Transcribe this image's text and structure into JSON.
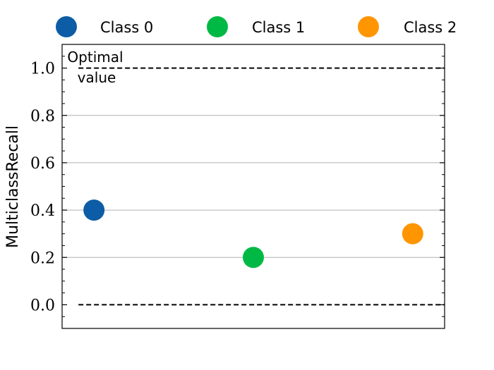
{
  "chart_data": {
    "type": "scatter",
    "title": "",
    "xlabel": "",
    "ylabel": "MulticlassRecall",
    "ylim": [
      -0.1,
      1.1
    ],
    "yticks": [
      0.0,
      0.2,
      0.4,
      0.6,
      0.8,
      1.0
    ],
    "ytick_labels": [
      "0.0",
      "0.2",
      "0.4",
      "0.6",
      "0.8",
      "1.0"
    ],
    "grid": "horizontal",
    "legend": {
      "placement": "top",
      "columns": 3
    },
    "series": [
      {
        "name": "Class 0",
        "x": 0,
        "y": 0.4,
        "color": "#0c5da5"
      },
      {
        "name": "Class 1",
        "x": 1,
        "y": 0.2,
        "color": "#00b945"
      },
      {
        "name": "Class 2",
        "x": 2,
        "y": 0.3,
        "color": "#ff9500"
      }
    ],
    "reference_lines": [
      {
        "y": 1.0,
        "style": "dashed",
        "color": "#000000"
      },
      {
        "y": 0.0,
        "style": "dashed",
        "color": "#000000"
      }
    ],
    "annotation": {
      "line1": "Optimal",
      "line2": "value"
    }
  }
}
